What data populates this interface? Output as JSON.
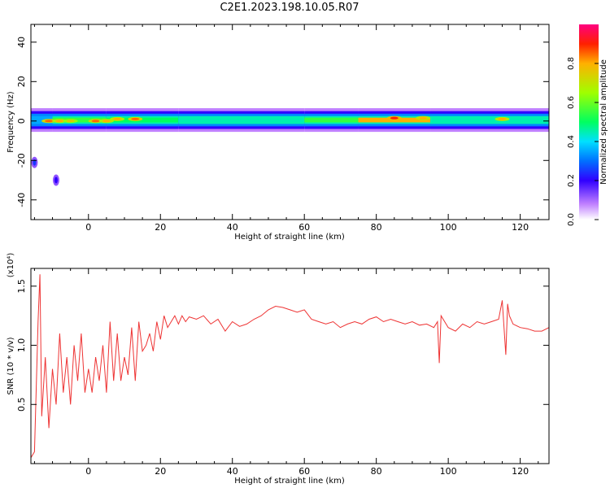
{
  "title": "C2E1.2023.198.10.05.R07",
  "chart_data": [
    {
      "type": "heatmap",
      "title": "C2E1.2023.198.10.05.R07",
      "xlabel": "Height of straight line (km)",
      "ylabel": "Frequency (Hz)",
      "xlim": [
        -16,
        128
      ],
      "ylim": [
        -50,
        49
      ],
      "xticks": [
        "0",
        "20",
        "40",
        "60",
        "80",
        "100",
        "120"
      ],
      "yticks": [
        "40",
        "20",
        "0",
        "-20",
        "-40"
      ],
      "colorbar": {
        "label": "Normalized spectral amplitude",
        "range": [
          0.0,
          1.0
        ],
        "ticks": [
          "0.0",
          "0.2",
          "0.4",
          "0.6",
          "0.8"
        ]
      },
      "band": {
        "center_freq_hz": 0.5,
        "segments": [
          {
            "x_start": -16,
            "x_end": -10,
            "amplitude": 0.35
          },
          {
            "x_start": -10,
            "x_end": 5,
            "amplitude": 0.55
          },
          {
            "x_start": 5,
            "x_end": 25,
            "amplitude": 0.5
          },
          {
            "x_start": 25,
            "x_end": 60,
            "amplitude": 0.45
          },
          {
            "x_start": 60,
            "x_end": 75,
            "amplitude": 0.55
          },
          {
            "x_start": 75,
            "x_end": 95,
            "amplitude": 0.8
          },
          {
            "x_start": 95,
            "x_end": 128,
            "amplitude": 0.45
          }
        ],
        "hotspots": [
          {
            "x": -11,
            "f": 0,
            "amplitude": 0.85
          },
          {
            "x": -8,
            "f": 0,
            "amplitude": 0.8
          },
          {
            "x": -5,
            "f": 0,
            "amplitude": 0.75
          },
          {
            "x": 2,
            "f": 0,
            "amplitude": 0.85
          },
          {
            "x": 5,
            "f": 0,
            "amplitude": 0.8
          },
          {
            "x": 8,
            "f": 1,
            "amplitude": 0.8
          },
          {
            "x": 13,
            "f": 1,
            "amplitude": 0.85
          },
          {
            "x": 85,
            "f": 1.5,
            "amplitude": 0.9
          },
          {
            "x": 93,
            "f": 1.5,
            "amplitude": 0.8
          },
          {
            "x": 115,
            "f": 1,
            "amplitude": 0.8
          }
        ],
        "outliers": [
          {
            "x": -15,
            "f": -21,
            "amplitude": 0.25
          },
          {
            "x": -9,
            "f": -30,
            "amplitude": 0.2
          }
        ]
      }
    },
    {
      "type": "line",
      "xlabel": "Height of straight line (km)",
      "ylabel": "SNR (10 * v/v)",
      "multiplier": "(x10⁴)",
      "xlim": [
        -16,
        128
      ],
      "ylim": [
        0,
        1.65
      ],
      "xticks": [
        "0",
        "20",
        "40",
        "60",
        "80",
        "100",
        "120"
      ],
      "yticks": [
        "0.5",
        "1.0",
        "1.5"
      ],
      "series": [
        {
          "color": "#ee3333",
          "x": [
            -16,
            -15,
            -14,
            -13.5,
            -13,
            -12,
            -11,
            -10,
            -9,
            -8,
            -7,
            -6,
            -5,
            -4,
            -3,
            -2,
            -1,
            0,
            1,
            2,
            3,
            4,
            5,
            6,
            7,
            8,
            9,
            10,
            11,
            12,
            13,
            14,
            15,
            16,
            17,
            18,
            19,
            20,
            21,
            22,
            23,
            24,
            25,
            26,
            27,
            28,
            30,
            32,
            34,
            36,
            38,
            40,
            42,
            44,
            46,
            48,
            50,
            52,
            54,
            56,
            58,
            60,
            62,
            64,
            66,
            68,
            70,
            72,
            74,
            76,
            78,
            80,
            82,
            84,
            86,
            88,
            90,
            92,
            94,
            96,
            97,
            97.5,
            98,
            100,
            102,
            104,
            106,
            108,
            110,
            112,
            114,
            115,
            116,
            116.5,
            117,
            118,
            120,
            122,
            124,
            126,
            128
          ],
          "y": [
            0.05,
            0.1,
            1.2,
            1.6,
            0.4,
            0.9,
            0.3,
            0.8,
            0.5,
            1.1,
            0.6,
            0.9,
            0.5,
            1.0,
            0.7,
            1.1,
            0.6,
            0.8,
            0.6,
            0.9,
            0.7,
            1.0,
            0.6,
            1.2,
            0.7,
            1.1,
            0.7,
            0.9,
            0.75,
            1.15,
            0.7,
            1.2,
            0.95,
            1.0,
            1.1,
            0.95,
            1.2,
            1.05,
            1.25,
            1.15,
            1.2,
            1.25,
            1.18,
            1.25,
            1.2,
            1.24,
            1.22,
            1.25,
            1.18,
            1.22,
            1.12,
            1.2,
            1.16,
            1.18,
            1.22,
            1.25,
            1.3,
            1.33,
            1.32,
            1.3,
            1.28,
            1.3,
            1.22,
            1.2,
            1.18,
            1.2,
            1.15,
            1.18,
            1.2,
            1.18,
            1.22,
            1.24,
            1.2,
            1.22,
            1.2,
            1.18,
            1.2,
            1.17,
            1.18,
            1.15,
            1.2,
            0.85,
            1.25,
            1.15,
            1.12,
            1.18,
            1.15,
            1.2,
            1.18,
            1.2,
            1.22,
            1.38,
            0.92,
            1.35,
            1.25,
            1.18,
            1.15,
            1.14,
            1.12,
            1.12,
            1.15
          ]
        }
      ]
    }
  ]
}
